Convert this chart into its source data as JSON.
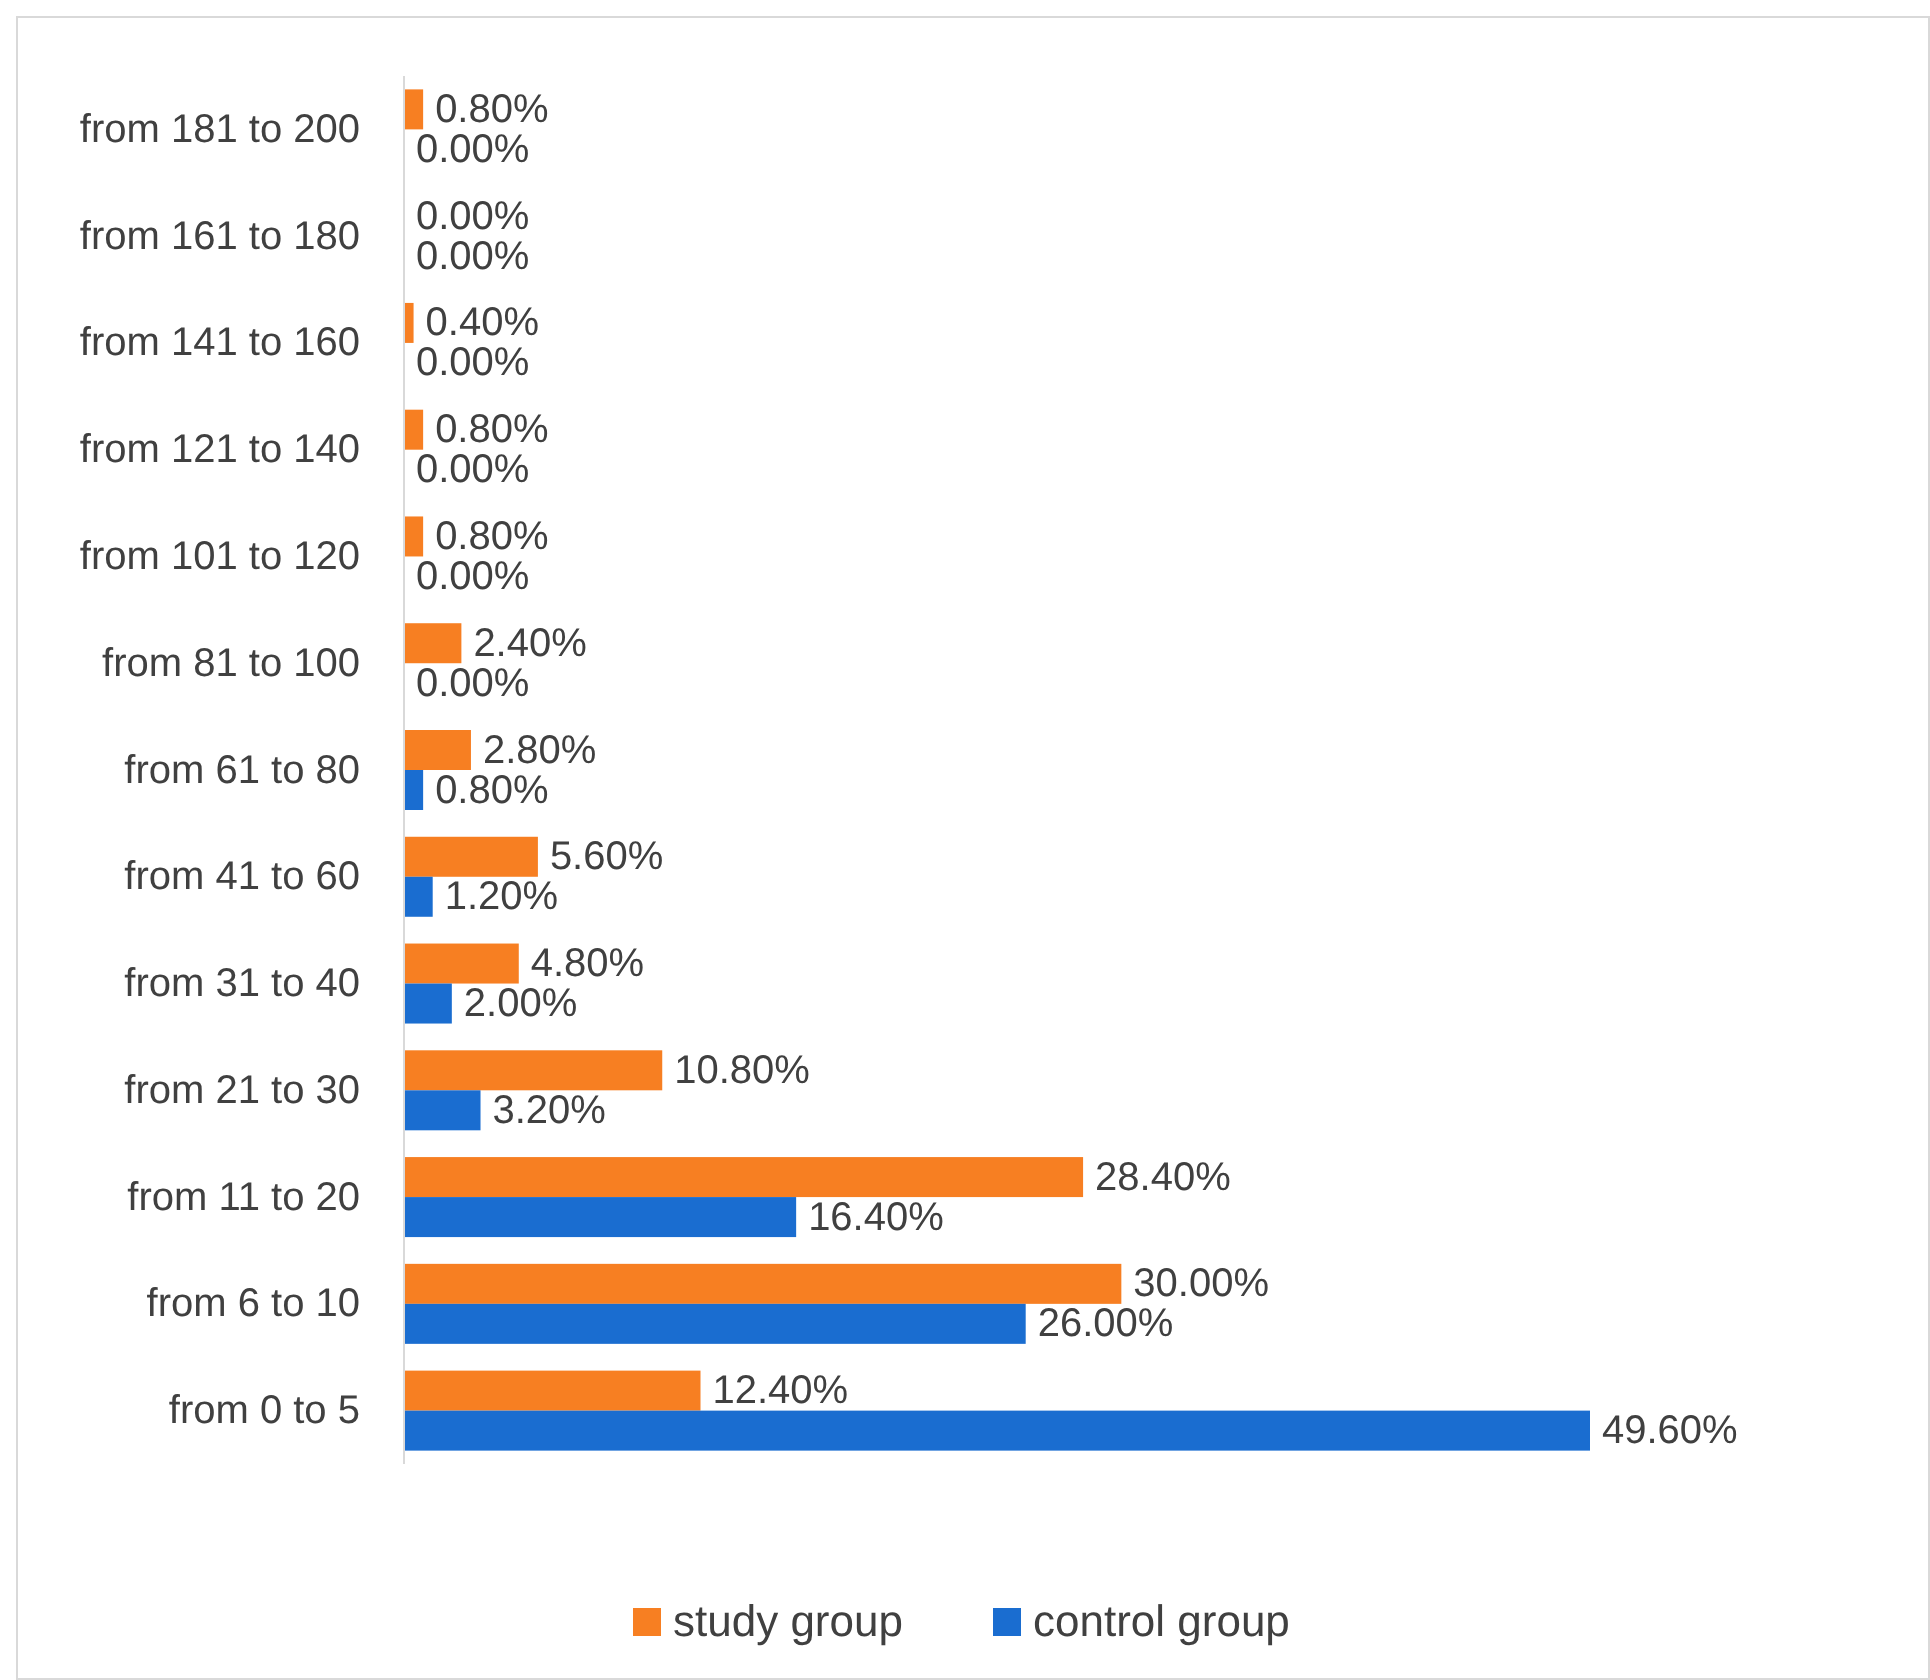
{
  "chart_data": {
    "type": "bar",
    "orientation": "horizontal",
    "categories": [
      "from 181 to 200",
      "from 161 to 180",
      "from 141 to 160",
      "from 121 to 140",
      "from 101 to 120",
      "from 81 to 100",
      "from 61 to 80",
      "from 41 to 60",
      "from 31 to 40",
      "from 21 to 30",
      "from 11 to 20",
      "from 6 to 10",
      "from 0 to 5"
    ],
    "series": [
      {
        "name": "study group",
        "color": "#f77f22",
        "values": [
          0.8,
          0,
          0.4,
          0.8,
          0.8,
          2.4,
          2.8,
          5.6,
          4.8,
          10.8,
          28.4,
          30,
          12.4
        ],
        "value_labels": [
          "0.80%",
          "0.00%",
          "0.40%",
          "0.80%",
          "0.80%",
          "2.40%",
          "2.80%",
          "5.60%",
          "4.80%",
          "10.80%",
          "28.40%",
          "30.00%",
          "12.40%"
        ]
      },
      {
        "name": "control group",
        "color": "#1a6dd0",
        "values": [
          0,
          0,
          0,
          0,
          0,
          0,
          0.8,
          1.2,
          2,
          3.2,
          16.4,
          26,
          49.6
        ],
        "value_labels": [
          "0.00%",
          "0.00%",
          "0.00%",
          "0.00%",
          "0.00%",
          "0.00%",
          "0.80%",
          "1.20%",
          "2.00%",
          "3.20%",
          "16.40%",
          "26.00%",
          "49.60%"
        ]
      }
    ],
    "legend": "bottom"
  }
}
